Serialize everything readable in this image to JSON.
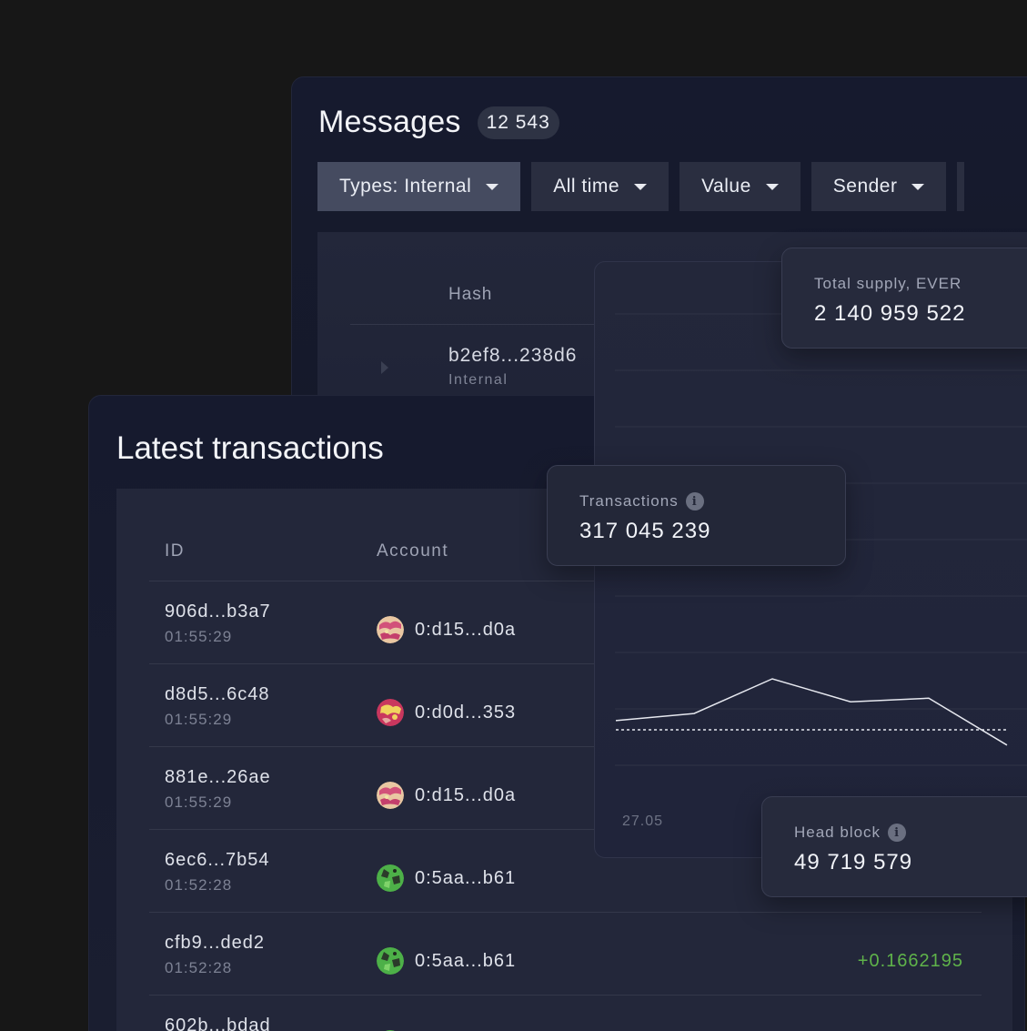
{
  "messages": {
    "title": "Messages",
    "count": "12 543",
    "filters": [
      {
        "label": "Types: Internal",
        "active": true
      },
      {
        "label": "All time",
        "active": false
      },
      {
        "label": "Value",
        "active": false
      },
      {
        "label": "Sender",
        "active": false
      }
    ],
    "table": {
      "header_hash": "Hash",
      "row": {
        "hash": "b2ef8...238d6",
        "type": "Internal"
      }
    }
  },
  "transactions": {
    "title": "Latest transactions",
    "header_id": "ID",
    "header_account": "Account",
    "rows": [
      {
        "id": "906d...b3a7",
        "time": "01:55:29",
        "account": "0:d15...d0a",
        "avatar": "pink-yellow",
        "amount": ""
      },
      {
        "id": "d8d5...6c48",
        "time": "01:55:29",
        "account": "0:d0d...353",
        "avatar": "red-yellow",
        "amount": ""
      },
      {
        "id": "881e...26ae",
        "time": "01:55:29",
        "account": "0:d15...d0a",
        "avatar": "pink-yellow",
        "amount": ""
      },
      {
        "id": "6ec6...7b54",
        "time": "01:52:28",
        "account": "0:5aa...b61",
        "avatar": "green-dark",
        "amount": ""
      },
      {
        "id": "cfb9...ded2",
        "time": "01:52:28",
        "account": "0:5aa...b61",
        "avatar": "green-dark",
        "amount": "+0.1662195"
      },
      {
        "id": "602b...bdad",
        "time": "",
        "account": "",
        "avatar": "green-dark",
        "amount": ""
      }
    ]
  },
  "stats": {
    "supply": {
      "label": "Total supply, EVER",
      "value": "2 140 959 522"
    },
    "transactions": {
      "label": "Transactions",
      "value": "317 045 239",
      "icon": "info-icon"
    },
    "head_block": {
      "label": "Head block",
      "value": "49 719 579",
      "icon": "info-icon"
    }
  },
  "chart_data": {
    "type": "line",
    "x_tick_labels": [
      "27.05"
    ],
    "series": [
      {
        "style": "solid",
        "values": [
          0.18,
          0.32,
          1.0,
          0.55,
          0.62,
          -0.3
        ]
      },
      {
        "style": "dashed",
        "values": [
          0.0,
          0.0,
          0.0,
          0.0,
          0.0,
          0.0
        ]
      }
    ],
    "grid": true
  },
  "colors": {
    "background": "#171717",
    "panel": "#161a2e",
    "card": "#232738",
    "positive": "#5fb34a"
  }
}
